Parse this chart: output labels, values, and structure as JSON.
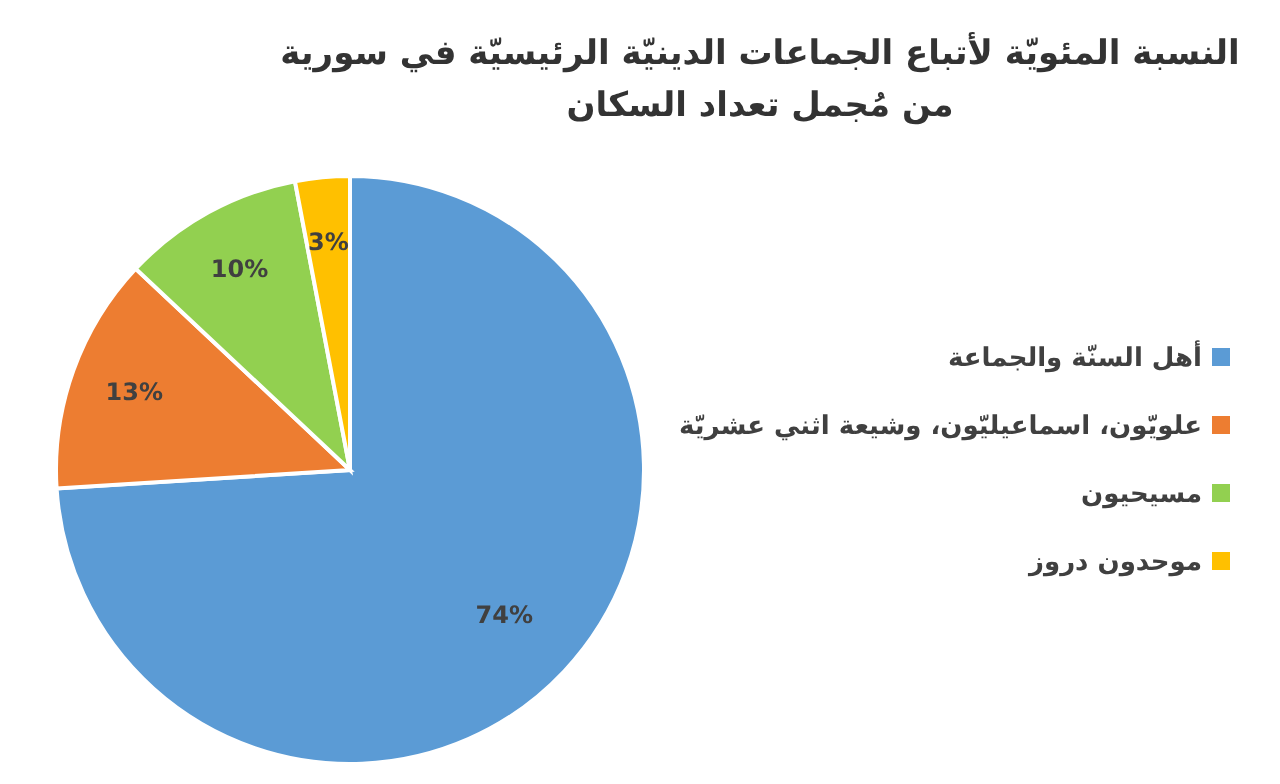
{
  "chart_data": {
    "type": "pie",
    "title": "النسبة المئويّة لأتباع الجماعات الدينيّة الرئيسيّة في سورية من مُجمل تعداد السكان",
    "categories": [
      "أهل السنّة والجماعة",
      "علويّون، اسماعيليّون، وشيعة اثني عشريّة",
      "مسيحيون",
      "موحدون دروز"
    ],
    "values": [
      74,
      13,
      10,
      3
    ],
    "colors": [
      "#5b9bd5",
      "#ed7d31",
      "#92d050",
      "#ffc000"
    ],
    "value_labels": [
      "74%",
      "13%",
      "10%",
      "3%"
    ],
    "legend": "right"
  }
}
